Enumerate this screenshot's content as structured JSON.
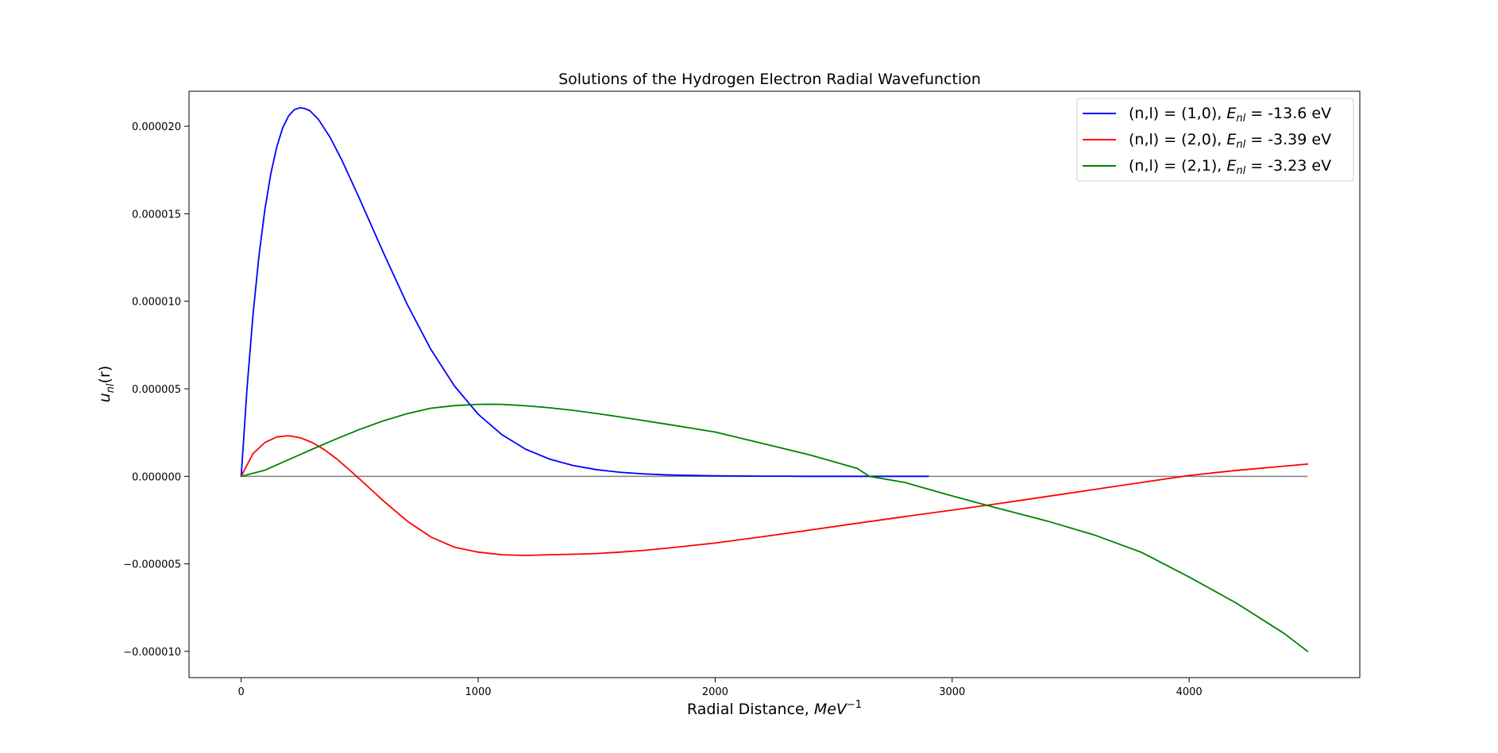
{
  "chart_data": {
    "type": "line",
    "title": "Solutions of the Hydrogen Electron Radial Wavefunction",
    "xlabel": {
      "prefix": "Radial Distance, ",
      "math": "MeV",
      "sup": "−1"
    },
    "ylabel": {
      "math": "u",
      "sub": "nl",
      "suffix": "(r)"
    },
    "xlim": [
      -220,
      4720
    ],
    "ylim": [
      -1.15e-05,
      2.2e-05
    ],
    "xticks": [
      0,
      1000,
      2000,
      3000,
      4000
    ],
    "xtick_labels": [
      "0",
      "1000",
      "2000",
      "3000",
      "4000"
    ],
    "yticks": [
      2e-05,
      1.5e-05,
      1e-05,
      5e-06,
      0,
      -5e-06,
      -1e-05
    ],
    "ytick_labels": [
      "0.000020",
      "0.000015",
      "0.000010",
      "0.000005",
      "0.000000",
      "−0.000005",
      "−0.000010"
    ],
    "grid": false,
    "legend_position": "top-right",
    "baseline": {
      "color": "#808080",
      "x": [
        0,
        4500
      ],
      "y": 0
    },
    "series": [
      {
        "name": "(n,l) = (1,0), E_nl = -13.6 eV",
        "legend": {
          "prefix": "(n,l) = (1,0), ",
          "math": "E",
          "sub": "nl",
          "suffix": " = -13.6 eV"
        },
        "color": "#0000ff",
        "x": [
          0,
          25,
          50,
          75,
          100,
          125,
          150,
          175,
          200,
          225,
          250,
          268,
          290,
          325,
          375,
          425,
          500,
          600,
          700,
          800,
          900,
          1000,
          1100,
          1200,
          1300,
          1400,
          1500,
          1600,
          1700,
          1800,
          1900,
          2000,
          2100,
          2200,
          2300,
          2400,
          2500,
          2600,
          2700,
          2800,
          2900
        ],
        "y": [
          0,
          5.08e-06,
          9.24e-06,
          1.259e-05,
          1.524e-05,
          1.729e-05,
          1.881e-05,
          1.99e-05,
          2.059e-05,
          2.096e-05,
          2.106e-05,
          2.101e-05,
          2.089e-05,
          2.041e-05,
          1.937e-05,
          1.806e-05,
          1.584e-05,
          1.278e-05,
          9.84e-06,
          7.26e-06,
          5.16e-06,
          3.55e-06,
          2.38e-06,
          1.55e-06,
          9.9e-07,
          6.2e-07,
          3.8e-07,
          2.3e-07,
          1.4e-07,
          8e-08,
          5e-08,
          3e-08,
          2e-08,
          1e-08,
          1e-08,
          0,
          0,
          0,
          0,
          0,
          0
        ]
      },
      {
        "name": "(n,l) = (2,0), E_nl = -3.39 eV",
        "legend": {
          "prefix": "(n,l) = (2,0), ",
          "math": "E",
          "sub": "nl",
          "suffix": " = -3.39 eV"
        },
        "color": "#ff0000",
        "x": [
          0,
          50,
          100,
          150,
          200,
          250,
          300,
          350,
          400,
          450,
          500,
          550,
          600,
          700,
          800,
          900,
          1000,
          1100,
          1200,
          1300,
          1400,
          1500,
          1600,
          1700,
          1800,
          2000,
          2200,
          2400,
          2600,
          2800,
          3000,
          3200,
          3400,
          3600,
          3800,
          3900,
          4000,
          4200,
          4400,
          4500
        ],
        "y": [
          0,
          1.3e-06,
          1.93e-06,
          2.25e-06,
          2.32e-06,
          2.2e-06,
          1.93e-06,
          1.53e-06,
          1.03e-06,
          4.5e-07,
          -1.6e-07,
          -7.8e-07,
          -1.4e-06,
          -2.55e-06,
          -3.46e-06,
          -4.05e-06,
          -4.33e-06,
          -4.48e-06,
          -4.52e-06,
          -4.48e-06,
          -4.45e-06,
          -4.41e-06,
          -4.33e-06,
          -4.23e-06,
          -4.1e-06,
          -3.81e-06,
          -3.45e-06,
          -3.07e-06,
          -2.68e-06,
          -2.3e-06,
          -1.93e-06,
          -1.55e-06,
          -1.15e-06,
          -7.5e-07,
          -3.5e-07,
          -1.5e-07,
          5e-08,
          3.4e-07,
          5.8e-07,
          7e-07
        ]
      },
      {
        "name": "(n,l) = (2,1), E_nl = -3.23 eV",
        "legend": {
          "prefix": "(n,l) = (2,1), ",
          "math": "E",
          "sub": "nl",
          "suffix": " = -3.23 eV"
        },
        "color": "#008000",
        "x": [
          0,
          100,
          200,
          300,
          400,
          500,
          600,
          700,
          800,
          900,
          1000,
          1050,
          1100,
          1200,
          1300,
          1400,
          1500,
          1600,
          1700,
          1800,
          1900,
          2000,
          2200,
          2400,
          2600,
          2650,
          2800,
          3000,
          3200,
          3400,
          3600,
          3800,
          4000,
          4200,
          4400,
          4500
        ],
        "y": [
          0,
          3.5e-07,
          9.5e-07,
          1.55e-06,
          2.13e-06,
          2.68e-06,
          3.17e-06,
          3.58e-06,
          3.89e-06,
          4.04e-06,
          4.11e-06,
          4.12e-06,
          4.11e-06,
          4.03e-06,
          3.92e-06,
          3.77e-06,
          3.59e-06,
          3.39e-06,
          3.18e-06,
          2.97e-06,
          2.75e-06,
          2.53e-06,
          1.88e-06,
          1.22e-06,
          4.5e-07,
          0,
          -3.5e-07,
          -1.12e-06,
          -1.85e-06,
          -2.55e-06,
          -3.35e-06,
          -4.35e-06,
          -5.75e-06,
          -7.25e-06,
          -8.97e-06,
          -1e-05
        ]
      }
    ]
  }
}
